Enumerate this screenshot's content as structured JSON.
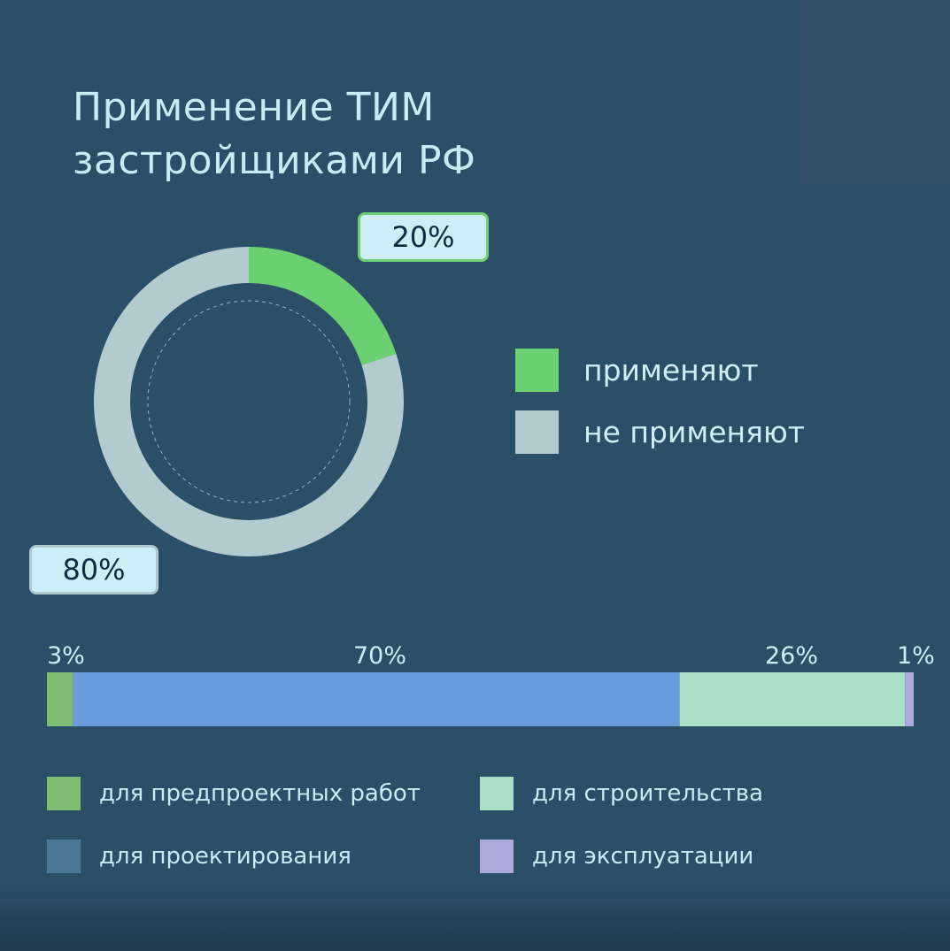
{
  "header": {
    "title_line1": "Применение ТИМ",
    "title_line2": "застройщиками РФ"
  },
  "colors": {
    "background": "#2b4f66",
    "apply": "#6bd071",
    "not_apply": "#b3cbcf",
    "pre_design": "#7fbd72",
    "design": "#6a9de0",
    "construction": "#a9dfc5",
    "operation": "#ada9dc",
    "design_legend_swatch": "#4c7898"
  },
  "chart_data": [
    {
      "type": "pie",
      "style": "donut",
      "title": "Применение ТИМ застройщиками РФ",
      "labels": [
        "применяют",
        "не применяют"
      ],
      "values": [
        20,
        80
      ],
      "value_labels": [
        "20%",
        "80%"
      ],
      "colors": [
        "#6bd071",
        "#b3cbcf"
      ],
      "legend": "right"
    },
    {
      "type": "bar",
      "orientation": "horizontal-stacked",
      "categories": [
        "для предпроектных работ",
        "для проектирования",
        "для строительства",
        "для эксплуатации"
      ],
      "values": [
        3,
        70,
        26,
        1
      ],
      "value_labels": [
        "3%",
        "70%",
        "26%",
        "1%"
      ],
      "colors": [
        "#7fbd72",
        "#6a9de0",
        "#a9dfc5",
        "#ada9dc"
      ],
      "legend": "bottom"
    }
  ]
}
